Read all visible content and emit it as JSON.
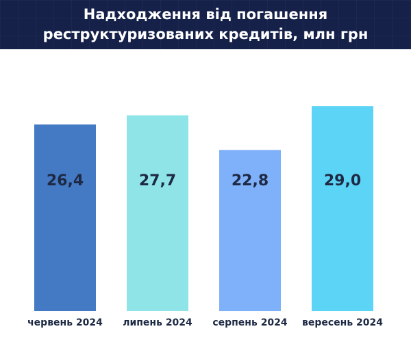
{
  "title_lines": [
    "Надходження від погашення",
    "реструктуризованих кредитів, млн грн"
  ],
  "chart_data": {
    "type": "bar",
    "title": "Надходження від погашення реструктуризованих кредитів, млн грн",
    "categories": [
      "червень 2024",
      "липень 2024",
      "серпень 2024",
      "вересень 2024"
    ],
    "values": [
      26.4,
      27.7,
      22.8,
      29.0
    ],
    "value_labels": [
      "26,4",
      "27,7",
      "22,8",
      "29,0"
    ],
    "bar_colors": [
      "#4479c4",
      "#8fe4e8",
      "#7fb0fa",
      "#5cd4f6"
    ],
    "xlabel": "",
    "ylabel": "",
    "grid": false,
    "legend": "none"
  },
  "colors": {
    "header_bg": "#16214a",
    "header_text": "#ffffff",
    "label_text": "#1e2a44"
  }
}
